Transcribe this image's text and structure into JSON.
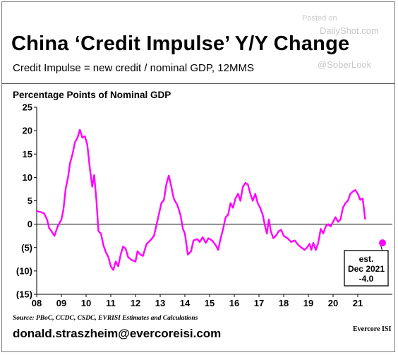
{
  "header": {
    "title": "China ‘Credit Impulse’ Y/Y Change",
    "subtitle": "Credit Impulse = new credit / nominal GDP, 12MMS"
  },
  "watermarks": {
    "posted_on": "Posted on",
    "site": "DailyShot.com",
    "handle": "@SoberLook"
  },
  "footer": {
    "source": "Source: PBoC, CCDC, CSDC, EVRISI Estimates and Calculations",
    "email": "donald.straszheim@evercoreisi.com",
    "logo": "Evercore ISI"
  },
  "colors": {
    "series": "#ff00ff",
    "axis": "#000000",
    "callout_border": "#000000"
  },
  "chart_data": {
    "type": "line",
    "ylabel": "Percentage Points of Nominal GDP",
    "ylim": [
      -15,
      25
    ],
    "xlim": [
      2008,
      2022.4
    ],
    "yticks": [
      {
        "value": 25,
        "label": "25"
      },
      {
        "value": 20,
        "label": "20"
      },
      {
        "value": 15,
        "label": "15"
      },
      {
        "value": 10,
        "label": "10"
      },
      {
        "value": 5,
        "label": "5"
      },
      {
        "value": 0,
        "label": "0"
      },
      {
        "value": -5,
        "label": "(5)"
      },
      {
        "value": -10,
        "label": "(10)"
      },
      {
        "value": -15,
        "label": "(15)"
      }
    ],
    "xticks": [
      {
        "value": 2008,
        "label": "08"
      },
      {
        "value": 2009,
        "label": "09"
      },
      {
        "value": 2010,
        "label": "10"
      },
      {
        "value": 2011,
        "label": "11"
      },
      {
        "value": 2012,
        "label": "12"
      },
      {
        "value": 2013,
        "label": "13"
      },
      {
        "value": 2014,
        "label": "14"
      },
      {
        "value": 2015,
        "label": "15"
      },
      {
        "value": 2016,
        "label": "16"
      },
      {
        "value": 2017,
        "label": "17"
      },
      {
        "value": 2018,
        "label": "18"
      },
      {
        "value": 2019,
        "label": "19"
      },
      {
        "value": 2020,
        "label": "20"
      },
      {
        "value": 2021,
        "label": "21"
      }
    ],
    "series": [
      {
        "points": [
          [
            2008.0,
            2.8
          ],
          [
            2008.15,
            2.6
          ],
          [
            2008.3,
            2.3
          ],
          [
            2008.42,
            1.0
          ],
          [
            2008.5,
            -0.8
          ],
          [
            2008.6,
            -1.5
          ],
          [
            2008.72,
            -2.5
          ],
          [
            2008.85,
            -0.5
          ],
          [
            2009.0,
            1.0
          ],
          [
            2009.08,
            3.0
          ],
          [
            2009.17,
            7.5
          ],
          [
            2009.27,
            10.0
          ],
          [
            2009.35,
            13.0
          ],
          [
            2009.45,
            15.0
          ],
          [
            2009.55,
            17.5
          ],
          [
            2009.65,
            18.5
          ],
          [
            2009.75,
            20.2
          ],
          [
            2009.85,
            18.5
          ],
          [
            2009.95,
            18.8
          ],
          [
            2010.05,
            17.0
          ],
          [
            2010.15,
            12.0
          ],
          [
            2010.25,
            8.0
          ],
          [
            2010.33,
            10.5
          ],
          [
            2010.42,
            5.0
          ],
          [
            2010.5,
            -1.5
          ],
          [
            2010.6,
            -2.0
          ],
          [
            2010.7,
            -4.5
          ],
          [
            2010.8,
            -6.0
          ],
          [
            2010.9,
            -7.0
          ],
          [
            2011.0,
            -9.0
          ],
          [
            2011.1,
            -9.8
          ],
          [
            2011.2,
            -8.0
          ],
          [
            2011.3,
            -9.0
          ],
          [
            2011.4,
            -6.5
          ],
          [
            2011.5,
            -4.8
          ],
          [
            2011.6,
            -5.2
          ],
          [
            2011.7,
            -7.0
          ],
          [
            2011.8,
            -7.5
          ],
          [
            2011.9,
            -7.8
          ],
          [
            2012.0,
            -8.0
          ],
          [
            2012.08,
            -5.8
          ],
          [
            2012.2,
            -6.5
          ],
          [
            2012.3,
            -6.8
          ],
          [
            2012.45,
            -4.2
          ],
          [
            2012.6,
            -3.5
          ],
          [
            2012.75,
            -2.5
          ],
          [
            2012.9,
            1.0
          ],
          [
            2013.05,
            4.5
          ],
          [
            2013.15,
            5.2
          ],
          [
            2013.25,
            8.5
          ],
          [
            2013.35,
            10.4
          ],
          [
            2013.45,
            8.0
          ],
          [
            2013.55,
            5.5
          ],
          [
            2013.7,
            4.0
          ],
          [
            2013.82,
            2.0
          ],
          [
            2013.92,
            -1.0
          ],
          [
            2014.0,
            -2.0
          ],
          [
            2014.12,
            -6.5
          ],
          [
            2014.25,
            -5.8
          ],
          [
            2014.35,
            -3.5
          ],
          [
            2014.5,
            -3.2
          ],
          [
            2014.6,
            -3.8
          ],
          [
            2014.72,
            -2.8
          ],
          [
            2014.85,
            -4.0
          ],
          [
            2014.95,
            -3.0
          ],
          [
            2015.1,
            -3.5
          ],
          [
            2015.25,
            -4.5
          ],
          [
            2015.35,
            -5.5
          ],
          [
            2015.45,
            -3.0
          ],
          [
            2015.55,
            -1.0
          ],
          [
            2015.65,
            1.5
          ],
          [
            2015.75,
            2.0
          ],
          [
            2015.85,
            4.5
          ],
          [
            2015.95,
            3.5
          ],
          [
            2016.05,
            5.5
          ],
          [
            2016.15,
            6.5
          ],
          [
            2016.25,
            5.0
          ],
          [
            2016.35,
            8.0
          ],
          [
            2016.45,
            8.8
          ],
          [
            2016.55,
            8.5
          ],
          [
            2016.65,
            6.5
          ],
          [
            2016.75,
            5.0
          ],
          [
            2016.85,
            6.5
          ],
          [
            2016.95,
            4.5
          ],
          [
            2017.05,
            3.5
          ],
          [
            2017.15,
            2.0
          ],
          [
            2017.25,
            -0.5
          ],
          [
            2017.32,
            -2.0
          ],
          [
            2017.4,
            1.0
          ],
          [
            2017.48,
            -1.5
          ],
          [
            2017.58,
            -3.0
          ],
          [
            2017.68,
            -2.5
          ],
          [
            2017.8,
            -1.5
          ],
          [
            2017.9,
            -1.2
          ],
          [
            2018.0,
            -2.5
          ],
          [
            2018.15,
            -3.0
          ],
          [
            2018.3,
            -3.8
          ],
          [
            2018.45,
            -3.5
          ],
          [
            2018.6,
            -4.5
          ],
          [
            2018.72,
            -5.0
          ],
          [
            2018.85,
            -5.5
          ],
          [
            2018.95,
            -5.0
          ],
          [
            2019.05,
            -4.2
          ],
          [
            2019.12,
            -5.5
          ],
          [
            2019.2,
            -4.0
          ],
          [
            2019.3,
            -5.5
          ],
          [
            2019.4,
            -4.0
          ],
          [
            2019.5,
            -1.0
          ],
          [
            2019.6,
            -2.0
          ],
          [
            2019.7,
            -0.5
          ],
          [
            2019.8,
            0.0
          ],
          [
            2019.9,
            -0.5
          ],
          [
            2020.0,
            0.5
          ],
          [
            2020.1,
            1.5
          ],
          [
            2020.2,
            0.5
          ],
          [
            2020.3,
            1.0
          ],
          [
            2020.4,
            3.5
          ],
          [
            2020.5,
            4.5
          ],
          [
            2020.6,
            5.0
          ],
          [
            2020.7,
            6.5
          ],
          [
            2020.8,
            7.0
          ],
          [
            2020.9,
            7.3
          ],
          [
            2021.0,
            6.5
          ],
          [
            2021.1,
            5.2
          ],
          [
            2021.2,
            5.5
          ],
          [
            2021.3,
            1.0
          ]
        ]
      }
    ],
    "estimate": {
      "x": 2022.0,
      "y": -4.0
    },
    "annotation": {
      "line1": "est.",
      "line2": "Dec 2021",
      "line3": "-4.0"
    }
  }
}
